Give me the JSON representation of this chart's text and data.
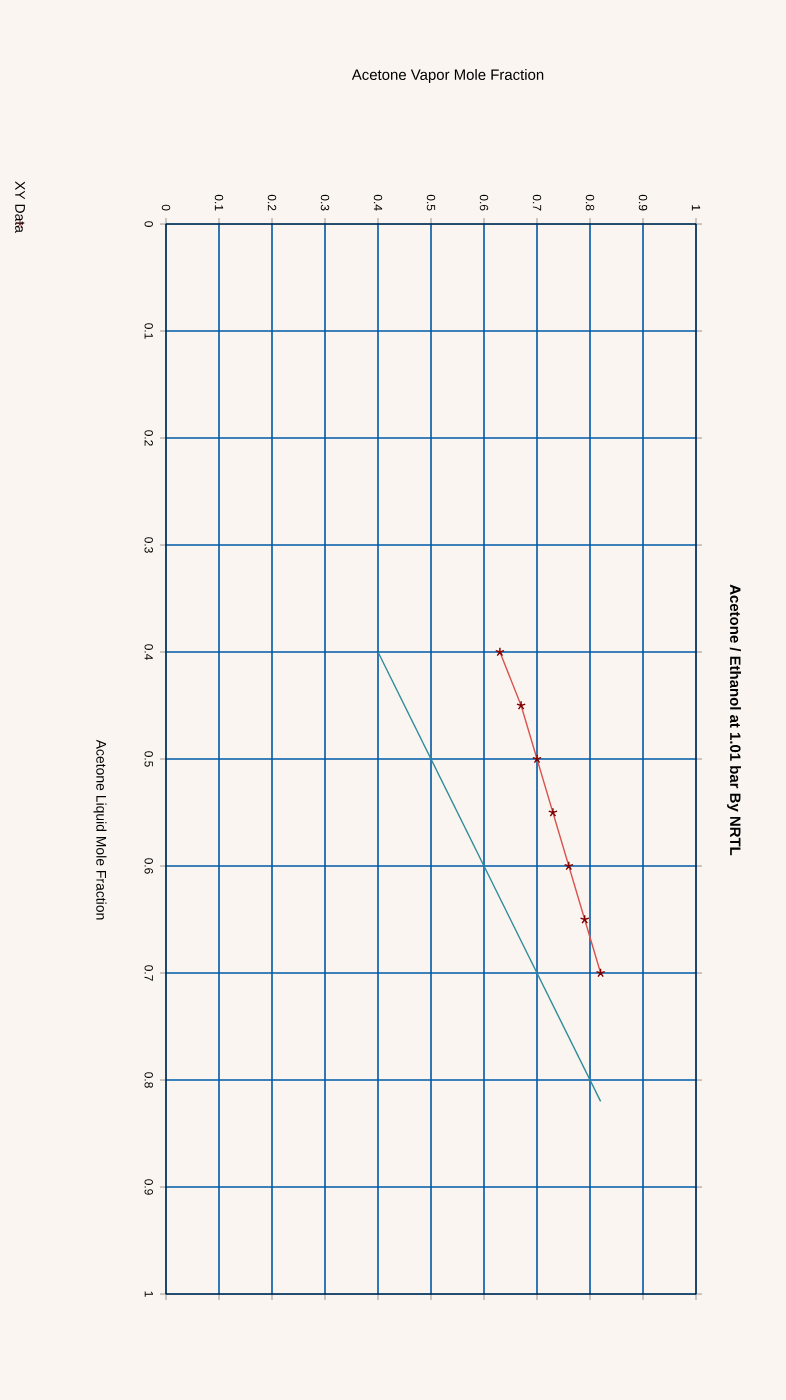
{
  "chart_data": {
    "type": "line",
    "title": "Acetone / Ethanol at    1.01 bar By NRTL",
    "annotations": [
      "Acetone Vapor Mole Fraction"
    ],
    "ylabel": "Acetone Liquid Mole Fraction",
    "xlim": [
      0,
      1
    ],
    "ylim": [
      1,
      0
    ],
    "xticks": [
      0,
      0.1,
      0.2,
      0.3,
      0.4,
      0.5,
      0.6,
      0.7,
      0.8,
      0.9,
      1
    ],
    "yticks": [
      0,
      0.1,
      0.2,
      0.3,
      0.4,
      0.5,
      0.6,
      0.7,
      0.8,
      0.9,
      1
    ],
    "grid": true,
    "legend": "left",
    "marker": "cross",
    "series": [
      {
        "name": "XY Data",
        "color": "#d9534f",
        "x": [
          0.63,
          0.67,
          0.7,
          0.73,
          0.76,
          0.79,
          0.82
        ],
        "values": [
          0.4,
          0.45,
          0.5,
          0.55,
          0.6,
          0.65,
          0.7
        ]
      },
      {
        "color": "#2e8b9a",
        "marker": "none",
        "x": [
          0.4,
          0.82
        ],
        "values": [
          0.4,
          0.82
        ]
      }
    ]
  }
}
